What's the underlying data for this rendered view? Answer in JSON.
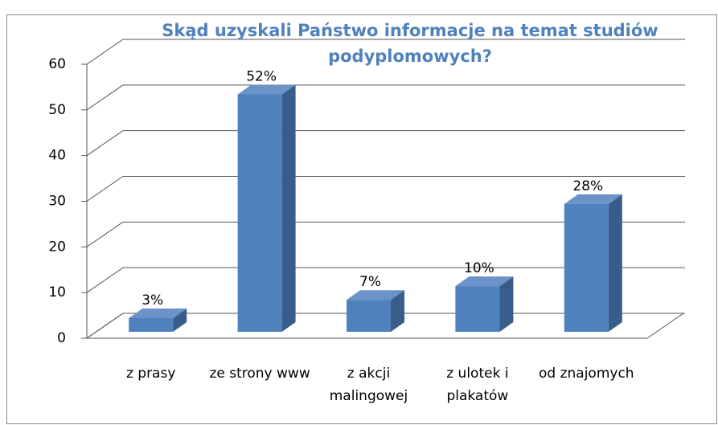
{
  "chart_data": {
    "type": "bar3d",
    "title": "Skąd uzyskali Państwo informacje na temat studiów podyplomowych?",
    "categories": [
      "z prasy",
      "ze strony www",
      "z akcji malingowej",
      "z ulotek i plakatów",
      "od znajomych"
    ],
    "values": [
      3,
      52,
      7,
      10,
      28
    ],
    "value_labels": [
      "3%",
      "52%",
      "7%",
      "10%",
      "28%"
    ],
    "color": "#4f81bd",
    "ylim": [
      0,
      60
    ],
    "yticks": [
      0,
      10,
      20,
      30,
      40,
      50,
      60
    ],
    "grid": true
  }
}
